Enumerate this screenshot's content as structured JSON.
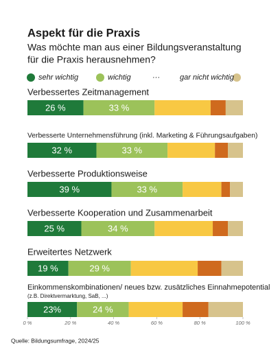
{
  "chart_data": {
    "type": "stacked-barh",
    "title": "Aspekt für die Praxis",
    "subtitle": [
      "Was möchte man aus einer Bildungsveranstaltung",
      "für die Praxis herausnehmen?"
    ],
    "categories": [
      "Verbessertes Zeitmanagement",
      "Verbesserte Unternehmensführung (inkl. Marketing & Führungsaufgaben)",
      "Verbesserte Produktionsweise",
      "Verbesserte Kooperation und Zusammenarbeit",
      "Erweitertes Netzwerk",
      "Einkommenskombinationen/ neues bzw. zusätzliches Einnahmepotential"
    ],
    "category_notes": [
      null,
      null,
      null,
      null,
      null,
      "(z.B. Direktvermarktung, SaB, ...)"
    ],
    "series": [
      {
        "name": "sehr wichtig",
        "color": "#1f7a3a",
        "values": [
          26,
          32,
          39,
          25,
          19,
          23
        ],
        "value_labels": [
          "26 %",
          "32 %",
          "39 %",
          "25 %",
          "19 %",
          "23%"
        ]
      },
      {
        "name": "wichtig",
        "color": "#9cc25a",
        "values": [
          33,
          33,
          33,
          34,
          29,
          24
        ],
        "value_labels": [
          "33 %",
          "33 %",
          "33 %",
          "34 %",
          "29 %",
          "24 %"
        ]
      },
      {
        "name": "···",
        "color": "#f8c843",
        "values": [
          26,
          22,
          18,
          27,
          31,
          25
        ]
      },
      {
        "name": null,
        "color": "#cf6a1e",
        "values": [
          7,
          6,
          4,
          7,
          11,
          12
        ]
      },
      {
        "name": "gar nicht wichtig",
        "color": "#d7c38c",
        "values": [
          8,
          7,
          6,
          7,
          10,
          16
        ]
      }
    ],
    "xlim": [
      0,
      100
    ],
    "xticks": [
      {
        "value": 0,
        "label": "0 %"
      },
      {
        "value": 20,
        "label": "20 %"
      },
      {
        "value": 40,
        "label": "40 %"
      },
      {
        "value": 60,
        "label": "60 %"
      },
      {
        "value": 80,
        "label": "80 %"
      },
      {
        "value": 100,
        "label": "100 %"
      }
    ],
    "source": "Quelle: Bildungsumfrage, 2024/25"
  }
}
